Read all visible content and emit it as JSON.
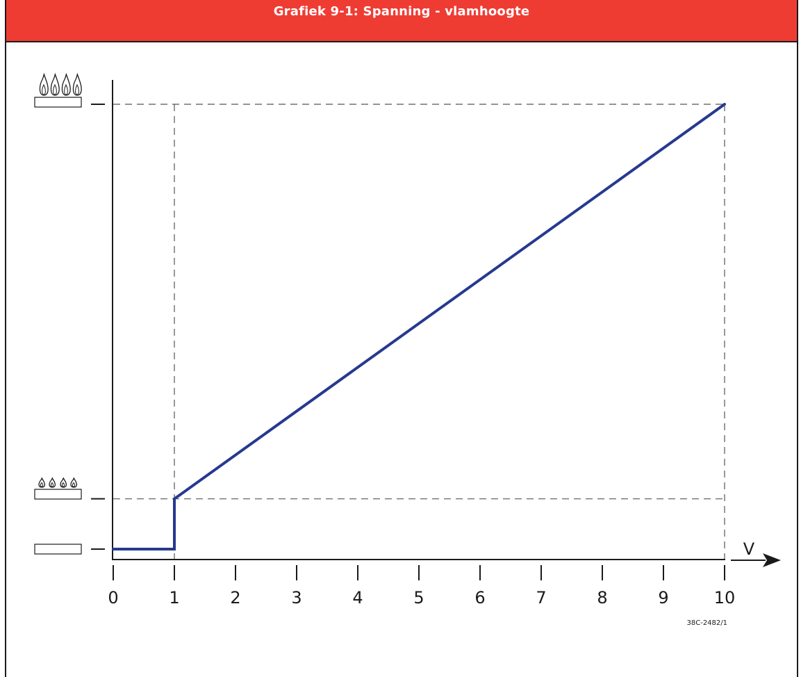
{
  "page": {
    "title": "Grafiek 9-1: Spanning - vlamhoogte",
    "reference_code": "38C-2482/1",
    "colors": {
      "title_bar": "#ef3c33",
      "series_line": "#27398f",
      "axis": "#1a1a1a",
      "dashed": "#555555"
    }
  },
  "chart_data": {
    "type": "line",
    "title": "Grafiek 9-1: Spanning - vlamhoogte",
    "xlabel": "V",
    "ylabel": "",
    "xlim": [
      0,
      10
    ],
    "ylim": [
      0,
      1
    ],
    "x_ticks": [
      0,
      1,
      2,
      3,
      4,
      5,
      6,
      7,
      8,
      9,
      10
    ],
    "x_tick_labels": [
      "0",
      "1",
      "2",
      "3",
      "4",
      "5",
      "6",
      "7",
      "8",
      "9",
      "10"
    ],
    "y_levels": [
      {
        "level": "off",
        "value": 0,
        "icon": "burner-off-icon"
      },
      {
        "level": "min",
        "value": 0.113,
        "icon": "burner-small-flame-icon"
      },
      {
        "level": "max",
        "value": 1,
        "icon": "burner-large-flame-icon"
      }
    ],
    "series": [
      {
        "points": [
          {
            "x": 0,
            "y": 0
          },
          {
            "x": 1,
            "y": 0
          },
          {
            "x": 1,
            "y": 0.113
          },
          {
            "x": 10,
            "y": 1
          }
        ]
      }
    ],
    "reference_lines": {
      "vertical_x": [
        1,
        10
      ],
      "horizontal_levels": [
        "min",
        "max"
      ]
    },
    "grid": false
  }
}
